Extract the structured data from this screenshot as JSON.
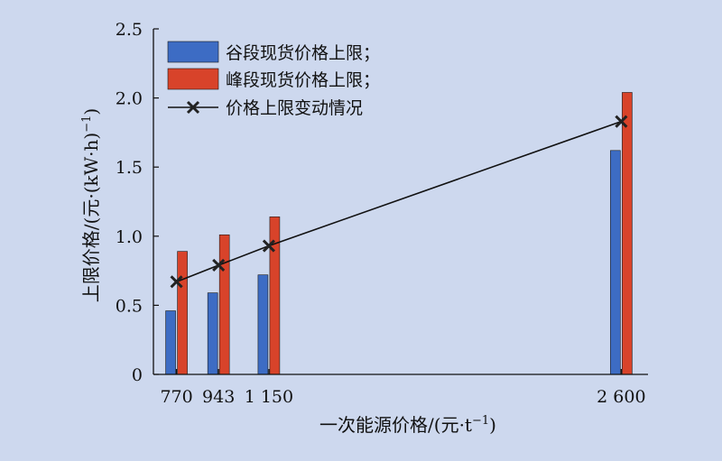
{
  "chart_data": {
    "type": "bar",
    "x": [
      770,
      943,
      1150,
      2600
    ],
    "x_tick_labels": [
      "770",
      "943",
      "1 150",
      "2 600"
    ],
    "series": [
      {
        "name": "谷段现货价格上限；",
        "kind": "bar",
        "color": "#3d6cc4",
        "values": [
          0.46,
          0.59,
          0.72,
          1.62
        ]
      },
      {
        "name": "峰段现货价格上限；",
        "kind": "bar",
        "color": "#d8432a",
        "values": [
          0.89,
          1.01,
          1.14,
          2.04
        ]
      },
      {
        "name": "价格上限变动情况",
        "kind": "line",
        "color": "#111111",
        "marker": "x",
        "values": [
          0.67,
          0.79,
          0.93,
          1.83
        ]
      }
    ],
    "xlabel": "一次能源价格/(元·t",
    "xlabel_sup": "−1",
    "xlabel_tail": ")",
    "ylabel": "上限价格/(元·(kW·h)",
    "ylabel_sup": "−1",
    "ylabel_tail": ")",
    "ylim": [
      0,
      2.5
    ],
    "y_ticks": [
      0,
      0.5,
      1.0,
      1.5,
      2.0,
      2.5
    ],
    "y_tick_labels": [
      "0",
      "0.5",
      "1.0",
      "1.5",
      "2.0",
      "2.5"
    ],
    "legend_position": "top-left",
    "grid": false
  }
}
